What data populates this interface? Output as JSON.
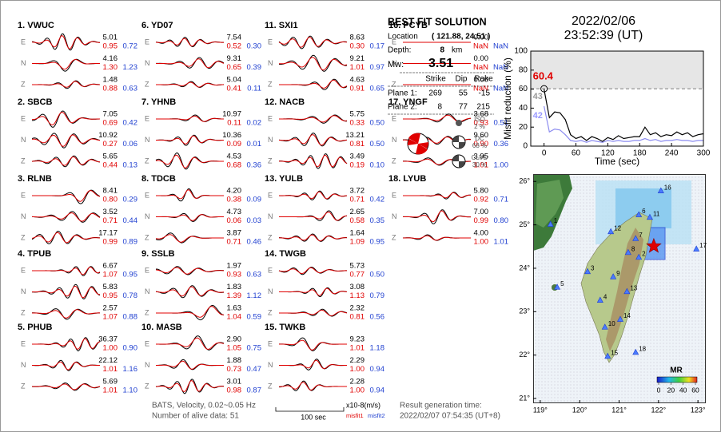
{
  "header": {
    "date": "2022/02/06",
    "time": "23:52:39  (UT)"
  },
  "components": [
    "E",
    "N",
    "Z"
  ],
  "stations": [
    {
      "label": "1.  VWUC",
      "traces": [
        {
          "amplitude": "5.01",
          "misfit1": "0.95",
          "misfit2": "0.72"
        },
        {
          "amplitude": "4.16",
          "misfit1": "1.30",
          "misfit2": "1.23"
        },
        {
          "amplitude": "1.48",
          "misfit1": "0.88",
          "misfit2": "0.63"
        }
      ]
    },
    {
      "label": "2.  SBCB",
      "traces": [
        {
          "amplitude": "7.05",
          "misfit1": "0.69",
          "misfit2": "0.42"
        },
        {
          "amplitude": "10.92",
          "misfit1": "0.27",
          "misfit2": "0.06"
        },
        {
          "amplitude": "5.65",
          "misfit1": "0.44",
          "misfit2": "0.13"
        }
      ]
    },
    {
      "label": "3.  RLNB",
      "traces": [
        {
          "amplitude": "8.41",
          "misfit1": "0.80",
          "misfit2": "0.29"
        },
        {
          "amplitude": "3.52",
          "misfit1": "0.71",
          "misfit2": "0.44"
        },
        {
          "amplitude": "17.17",
          "misfit1": "0.99",
          "misfit2": "0.89"
        }
      ]
    },
    {
      "label": "4.  TPUB",
      "traces": [
        {
          "amplitude": "6.67",
          "misfit1": "1.07",
          "misfit2": "0.95"
        },
        {
          "amplitude": "5.83",
          "misfit1": "0.95",
          "misfit2": "0.78"
        },
        {
          "amplitude": "2.57",
          "misfit1": "1.07",
          "misfit2": "0.88"
        }
      ]
    },
    {
      "label": "5.  PHUB",
      "traces": [
        {
          "amplitude": "36.37",
          "misfit1": "1.00",
          "misfit2": "0.90"
        },
        {
          "amplitude": "22.12",
          "misfit1": "1.01",
          "misfit2": "1.16"
        },
        {
          "amplitude": "5.69",
          "misfit1": "1.01",
          "misfit2": "1.10"
        }
      ]
    },
    {
      "label": "6.  YD07",
      "traces": [
        {
          "amplitude": "7.54",
          "misfit1": "0.52",
          "misfit2": "0.30"
        },
        {
          "amplitude": "9.31",
          "misfit1": "0.65",
          "misfit2": "0.39"
        },
        {
          "amplitude": "5.04",
          "misfit1": "0.41",
          "misfit2": "0.11"
        }
      ]
    },
    {
      "label": "7.  YHNB",
      "traces": [
        {
          "amplitude": "10.97",
          "misfit1": "0.11",
          "misfit2": "0.02"
        },
        {
          "amplitude": "10.36",
          "misfit1": "0.09",
          "misfit2": "0.01"
        },
        {
          "amplitude": "4.53",
          "misfit1": "0.68",
          "misfit2": "0.36"
        }
      ]
    },
    {
      "label": "8.  TDCB",
      "traces": [
        {
          "amplitude": "4.20",
          "misfit1": "0.38",
          "misfit2": "0.09"
        },
        {
          "amplitude": "4.73",
          "misfit1": "0.06",
          "misfit2": "0.03"
        },
        {
          "amplitude": "3.87",
          "misfit1": "0.71",
          "misfit2": "0.46"
        }
      ]
    },
    {
      "label": "9.  SSLB",
      "traces": [
        {
          "amplitude": "1.97",
          "misfit1": "0.93",
          "misfit2": "0.63"
        },
        {
          "amplitude": "1.83",
          "misfit1": "1.39",
          "misfit2": "1.12"
        },
        {
          "amplitude": "1.63",
          "misfit1": "1.04",
          "misfit2": "0.59"
        }
      ]
    },
    {
      "label": "10.  MASB",
      "traces": [
        {
          "amplitude": "2.90",
          "misfit1": "1.05",
          "misfit2": "0.75"
        },
        {
          "amplitude": "1.88",
          "misfit1": "0.73",
          "misfit2": "0.47"
        },
        {
          "amplitude": "3.01",
          "misfit1": "0.98",
          "misfit2": "0.87"
        }
      ]
    },
    {
      "label": "11.  SXI1",
      "traces": [
        {
          "amplitude": "8.63",
          "misfit1": "0.30",
          "misfit2": "0.17"
        },
        {
          "amplitude": "9.21",
          "misfit1": "1.01",
          "misfit2": "0.97"
        },
        {
          "amplitude": "4.63",
          "misfit1": "0.91",
          "misfit2": "0.65"
        }
      ]
    },
    {
      "label": "12.  NACB",
      "traces": [
        {
          "amplitude": "5.75",
          "misfit1": "0.33",
          "misfit2": "0.50"
        },
        {
          "amplitude": "13.21",
          "misfit1": "0.81",
          "misfit2": "0.50"
        },
        {
          "amplitude": "3.49",
          "misfit1": "0.19",
          "misfit2": "0.10"
        }
      ]
    },
    {
      "label": "13.  YULB",
      "traces": [
        {
          "amplitude": "3.72",
          "misfit1": "0.71",
          "misfit2": "0.42"
        },
        {
          "amplitude": "2.65",
          "misfit1": "0.58",
          "misfit2": "0.35"
        },
        {
          "amplitude": "1.64",
          "misfit1": "1.09",
          "misfit2": "0.95"
        }
      ]
    },
    {
      "label": "14.  TWGB",
      "traces": [
        {
          "amplitude": "5.73",
          "misfit1": "0.77",
          "misfit2": "0.50"
        },
        {
          "amplitude": "3.08",
          "misfit1": "1.13",
          "misfit2": "0.79"
        },
        {
          "amplitude": "2.32",
          "misfit1": "0.81",
          "misfit2": "0.56"
        }
      ]
    },
    {
      "label": "15.  TWKB",
      "traces": [
        {
          "amplitude": "9.23",
          "misfit1": "1.01",
          "misfit2": "1.18"
        },
        {
          "amplitude": "2.29",
          "misfit1": "1.00",
          "misfit2": "0.94"
        },
        {
          "amplitude": "2.28",
          "misfit1": "1.00",
          "misfit2": "0.94"
        }
      ]
    },
    {
      "label": "16.  PCYB",
      "traces": [
        {
          "amplitude": "0.00",
          "misfit1": "NaN",
          "misfit2": "NaN"
        },
        {
          "amplitude": "0.00",
          "misfit1": "NaN",
          "misfit2": "NaN"
        },
        {
          "amplitude": "0.00",
          "misfit1": "NaN",
          "misfit2": "NaN"
        }
      ]
    },
    {
      "label": "17.  YNGF",
      "traces": [
        {
          "amplitude": "3.68",
          "misfit1": "0.93",
          "misfit2": "0.51"
        },
        {
          "amplitude": "9.60",
          "misfit1": "0.90",
          "misfit2": "0.36"
        },
        {
          "amplitude": "3.95",
          "misfit1": "1.01",
          "misfit2": "1.00"
        }
      ]
    },
    {
      "label": "18.  LYUB",
      "traces": [
        {
          "amplitude": "5.80",
          "misfit1": "0.92",
          "misfit2": "0.71"
        },
        {
          "amplitude": "7.00",
          "misfit1": "0.99",
          "misfit2": "0.80"
        },
        {
          "amplitude": "4.00",
          "misfit1": "1.00",
          "misfit2": "1.01"
        }
      ]
    }
  ],
  "solution": {
    "title": "BEST FIT SOLUTION",
    "location_label": "Location",
    "location": "( 121.88, 24.51 )",
    "depth_label": "Depth:",
    "depth": "8",
    "depth_unit": "km",
    "mw_label": "Mw:",
    "mw": "3.51",
    "planes_header": [
      "Strike",
      "Dip",
      "Rake"
    ],
    "planes": [
      {
        "label": "Plane 1:",
        "values": [
          "269",
          "55",
          "-15"
        ]
      },
      {
        "label": "Plane 2:",
        "values": [
          "8",
          "77",
          "215"
        ]
      }
    ],
    "components": [
      {
        "name": "ISO",
        "value": "2 %"
      },
      {
        "name": "DC",
        "value": "68 %"
      },
      {
        "name": "CLVD",
        "value": "30 %"
      }
    ]
  },
  "footer": {
    "source": "BATS, Velocity, 0.02~0.05 Hz",
    "alive": "Number of alive data: 51",
    "scale": "100 sec",
    "unit": "x10-8(m/s)",
    "misfit1": "misfit1",
    "misfit2": "misfit2",
    "result_label": "Result generation time:",
    "result_time": "2022/02/07 07:54:35 (UT+8)"
  },
  "chart_data": {
    "type": "line",
    "x_label": "Time (sec)",
    "y_label": "Misfit reduction (%)",
    "x": [
      0,
      10,
      20,
      30,
      40,
      50,
      60,
      70,
      80,
      90,
      100,
      110,
      120,
      130,
      140,
      150,
      160,
      170,
      180,
      190,
      200,
      210,
      220,
      230,
      240,
      250,
      260,
      270,
      280,
      290,
      300
    ],
    "series": [
      {
        "color": "#000000",
        "values": [
          60,
          30,
          36,
          35,
          28,
          12,
          8,
          10,
          6,
          10,
          8,
          5,
          9,
          7,
          11,
          8,
          9,
          10,
          10,
          20,
          12,
          14,
          10,
          12,
          11,
          15,
          12,
          14,
          10,
          12,
          13
        ]
      },
      {
        "color": "#8c8cf0",
        "values": [
          42,
          15,
          18,
          17,
          12,
          6,
          5,
          6,
          4,
          6,
          5,
          4,
          6,
          5,
          6,
          5,
          5,
          6,
          6,
          8,
          6,
          7,
          5,
          6,
          6,
          7,
          6,
          6,
          5,
          6,
          6
        ]
      }
    ],
    "reference": 60.4,
    "reference_color": "#e00000",
    "annotations": [
      {
        "value": 43,
        "color": "#999999"
      },
      {
        "value": 42,
        "color": "#9999ff"
      }
    ],
    "xlim": [
      -25,
      300
    ],
    "xticks": [
      0,
      60,
      120,
      180,
      240,
      300
    ],
    "ylim": [
      0,
      100
    ],
    "yticks": [
      0,
      20,
      40,
      60,
      80,
      100
    ]
  },
  "map": {
    "lonlim": [
      118.82,
      123.2
    ],
    "latlim": [
      20.89,
      26.17
    ],
    "lonticks": [
      {
        "value": 119,
        "label": "119°"
      },
      {
        "value": 120,
        "label": "120°"
      },
      {
        "value": 121,
        "label": "121°"
      },
      {
        "value": 122,
        "label": "122°"
      },
      {
        "value": 123,
        "label": "123°"
      }
    ],
    "latticks": [
      {
        "value": 21,
        "label": "21°"
      },
      {
        "value": 22,
        "label": "22°"
      },
      {
        "value": 23,
        "label": "23°"
      },
      {
        "value": 24,
        "label": "24°"
      },
      {
        "value": 25,
        "label": "25°"
      },
      {
        "value": 26,
        "label": "26°"
      }
    ],
    "epicenter": [
      121.88,
      24.51
    ],
    "stations": [
      {
        "id": 1,
        "lon": 119.26,
        "lat": 25.01
      },
      {
        "id": 2,
        "lon": 121.5,
        "lat": 24.25
      },
      {
        "id": 3,
        "lon": 120.2,
        "lat": 23.92
      },
      {
        "id": 4,
        "lon": 120.52,
        "lat": 23.26
      },
      {
        "id": 5,
        "lon": 119.43,
        "lat": 23.56
      },
      {
        "id": 6,
        "lon": 121.5,
        "lat": 25.23
      },
      {
        "id": 7,
        "lon": 121.42,
        "lat": 24.68
      },
      {
        "id": 8,
        "lon": 121.23,
        "lat": 24.36
      },
      {
        "id": 9,
        "lon": 120.85,
        "lat": 23.8
      },
      {
        "id": 10,
        "lon": 120.64,
        "lat": 22.64
      },
      {
        "id": 11,
        "lon": 121.78,
        "lat": 25.17
      },
      {
        "id": 12,
        "lon": 120.79,
        "lat": 24.84
      },
      {
        "id": 13,
        "lon": 121.2,
        "lat": 23.46
      },
      {
        "id": 14,
        "lon": 121.03,
        "lat": 22.82
      },
      {
        "id": 15,
        "lon": 120.71,
        "lat": 21.97
      },
      {
        "id": 16,
        "lon": 122.06,
        "lat": 25.78
      },
      {
        "id": 17,
        "lon": 122.96,
        "lat": 24.44
      },
      {
        "id": 18,
        "lon": 121.42,
        "lat": 22.06
      }
    ],
    "colorbar": {
      "title": "MR",
      "ticks": [
        0,
        20,
        40,
        60
      ],
      "range": [
        0,
        60
      ]
    }
  }
}
